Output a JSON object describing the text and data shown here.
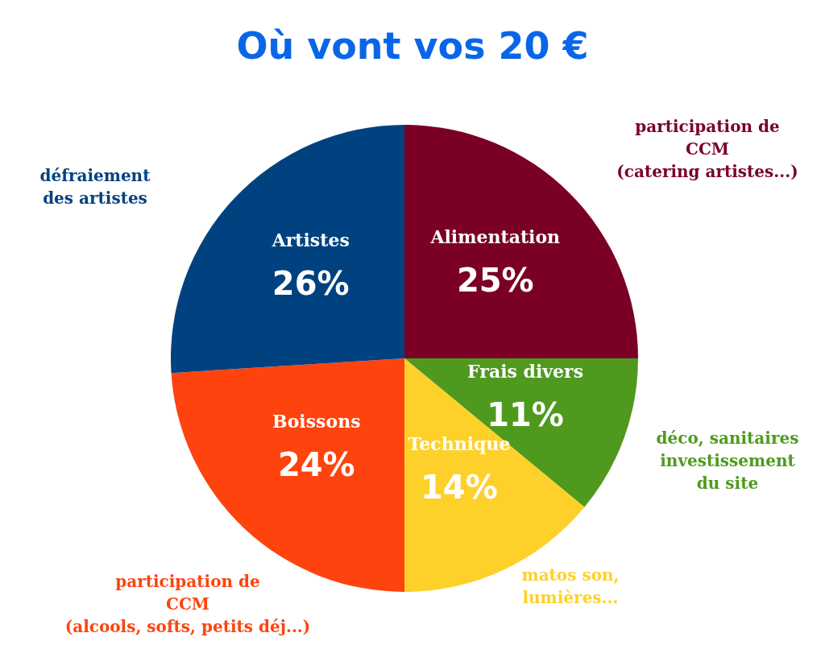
{
  "chart_data": {
    "type": "pie",
    "title": "Où vont vos 20 €",
    "categories": [
      "Alimentation",
      "Frais divers",
      "Technique",
      "Boissons",
      "Artistes"
    ],
    "values": [
      25,
      11,
      14,
      24,
      26
    ],
    "value_labels": [
      "25%",
      "11%",
      "14%",
      "24%",
      "26%"
    ],
    "colors": [
      "#7a0026",
      "#4f9a1e",
      "#fdd12a",
      "#fe430e",
      "#00427f"
    ],
    "annotations": [
      "participation de\nCCM\n(catering artistes...)",
      "déco, sanitaires\ninvestissement\ndu site",
      "matos son,\nlumières...",
      "participation de\nCCM\n(alcools, softs, petits déj...)",
      "défraiement\ndes artistes"
    ],
    "legend": false
  }
}
